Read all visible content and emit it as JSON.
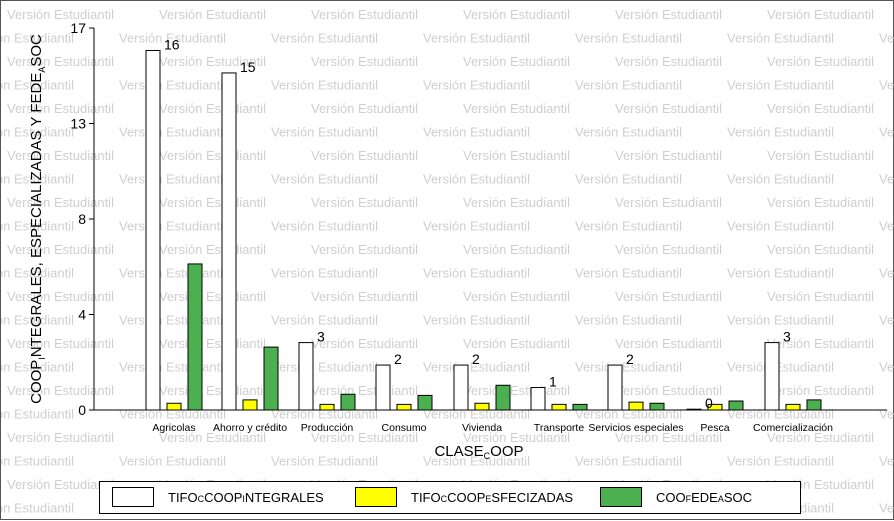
{
  "watermark": "Versión Estudiantil",
  "chart_data": {
    "type": "bar",
    "xlabel": "CLASECOOP",
    "ylabel": "COOPINTEGRALES, ESPECIALIZADAS Y FEDEASOC",
    "ylim": [
      0,
      17
    ],
    "yticks": [
      "0",
      "4",
      "8",
      "13",
      "17"
    ],
    "ytick_values": [
      0,
      4.25,
      8.5,
      12.75,
      17
    ],
    "categories": [
      "Agricolas",
      "Ahorro y crédito",
      "Producción",
      "Consumo",
      "Vivienda",
      "Transporte",
      "Servicios especiales",
      "Pesca",
      "Comercialización"
    ],
    "series": [
      {
        "name": "TIFOCOOPINTEGRALES",
        "color": "#ffffff",
        "values": [
          16,
          15,
          3,
          2,
          2,
          1,
          2,
          0,
          3
        ],
        "data_labels": [
          "16",
          "15",
          "3",
          "2",
          "2",
          "1",
          "2",
          "0",
          "3"
        ]
      },
      {
        "name": "TIFOCOOPESFECIZADAS",
        "color": "#ffff00",
        "values": [
          0.3,
          0.45,
          0.25,
          0.25,
          0.3,
          0.25,
          0.35,
          0.25,
          0.25
        ]
      },
      {
        "name": "COOFEDEASOC",
        "color": "#4caf50",
        "values": [
          6.5,
          2.8,
          0.7,
          0.65,
          1.1,
          0.25,
          0.3,
          0.4,
          0.45
        ]
      }
    ],
    "grid": false,
    "legend_position": "bottom"
  },
  "legend": {
    "items": [
      {
        "label_parts": [
          [
            "TIFO",
            ""
          ],
          [
            "C",
            "sm"
          ],
          [
            "COOP",
            ""
          ],
          [
            "I",
            "sm"
          ],
          [
            "NTEGRALES",
            ""
          ]
        ],
        "color": "#ffffff"
      },
      {
        "label_parts": [
          [
            "TIFO",
            ""
          ],
          [
            "C",
            "sm"
          ],
          [
            "COOP",
            ""
          ],
          [
            "E",
            "sm"
          ],
          [
            "SFECIZADAS",
            ""
          ]
        ],
        "color": "#ffff00"
      },
      {
        "label_parts": [
          [
            "COO",
            ""
          ],
          [
            "F",
            "sm"
          ],
          [
            "EDE",
            ""
          ],
          [
            "A",
            "sm"
          ],
          [
            "SOC",
            ""
          ]
        ],
        "color": "#4caf50"
      }
    ]
  }
}
